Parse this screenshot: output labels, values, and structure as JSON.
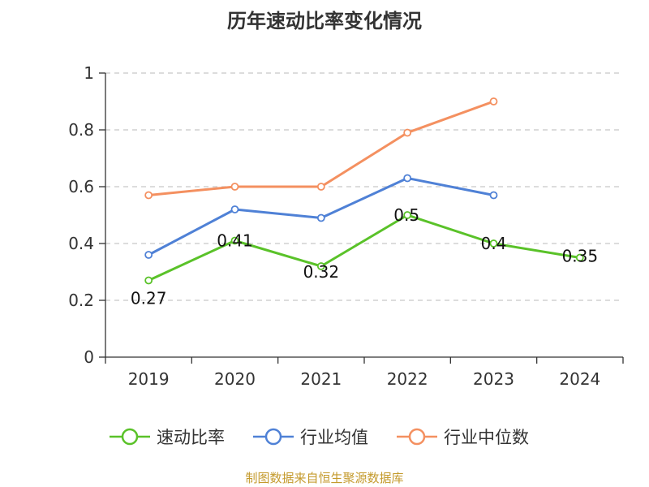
{
  "title": "历年速动比率变化情况",
  "source_note": "制图数据来自恒生聚源数据库",
  "chart_data": {
    "type": "line",
    "categories": [
      "2019",
      "2020",
      "2021",
      "2022",
      "2023",
      "2024"
    ],
    "ylim": [
      0,
      1
    ],
    "y_ticks": [
      0,
      0.2,
      0.4,
      0.6,
      0.8,
      1
    ],
    "y_tick_labels": [
      "0",
      "0.2",
      "0.4",
      "0.6",
      "0.8",
      "1"
    ],
    "grid": true,
    "legend_position": "bottom",
    "series": [
      {
        "name": "速动比率",
        "color": "#5ac229",
        "values": [
          0.27,
          0.41,
          0.32,
          0.5,
          0.4,
          0.35
        ],
        "data_labels": [
          "0.27",
          "0.41",
          "0.32",
          "0.5",
          "0.4",
          "0.35"
        ]
      },
      {
        "name": "行业均值",
        "color": "#4f81d6",
        "values": [
          0.36,
          0.52,
          0.49,
          0.63,
          0.57,
          null
        ]
      },
      {
        "name": "行业中位数",
        "color": "#f49060",
        "values": [
          0.57,
          0.6,
          0.6,
          0.79,
          0.9,
          null
        ]
      }
    ]
  }
}
